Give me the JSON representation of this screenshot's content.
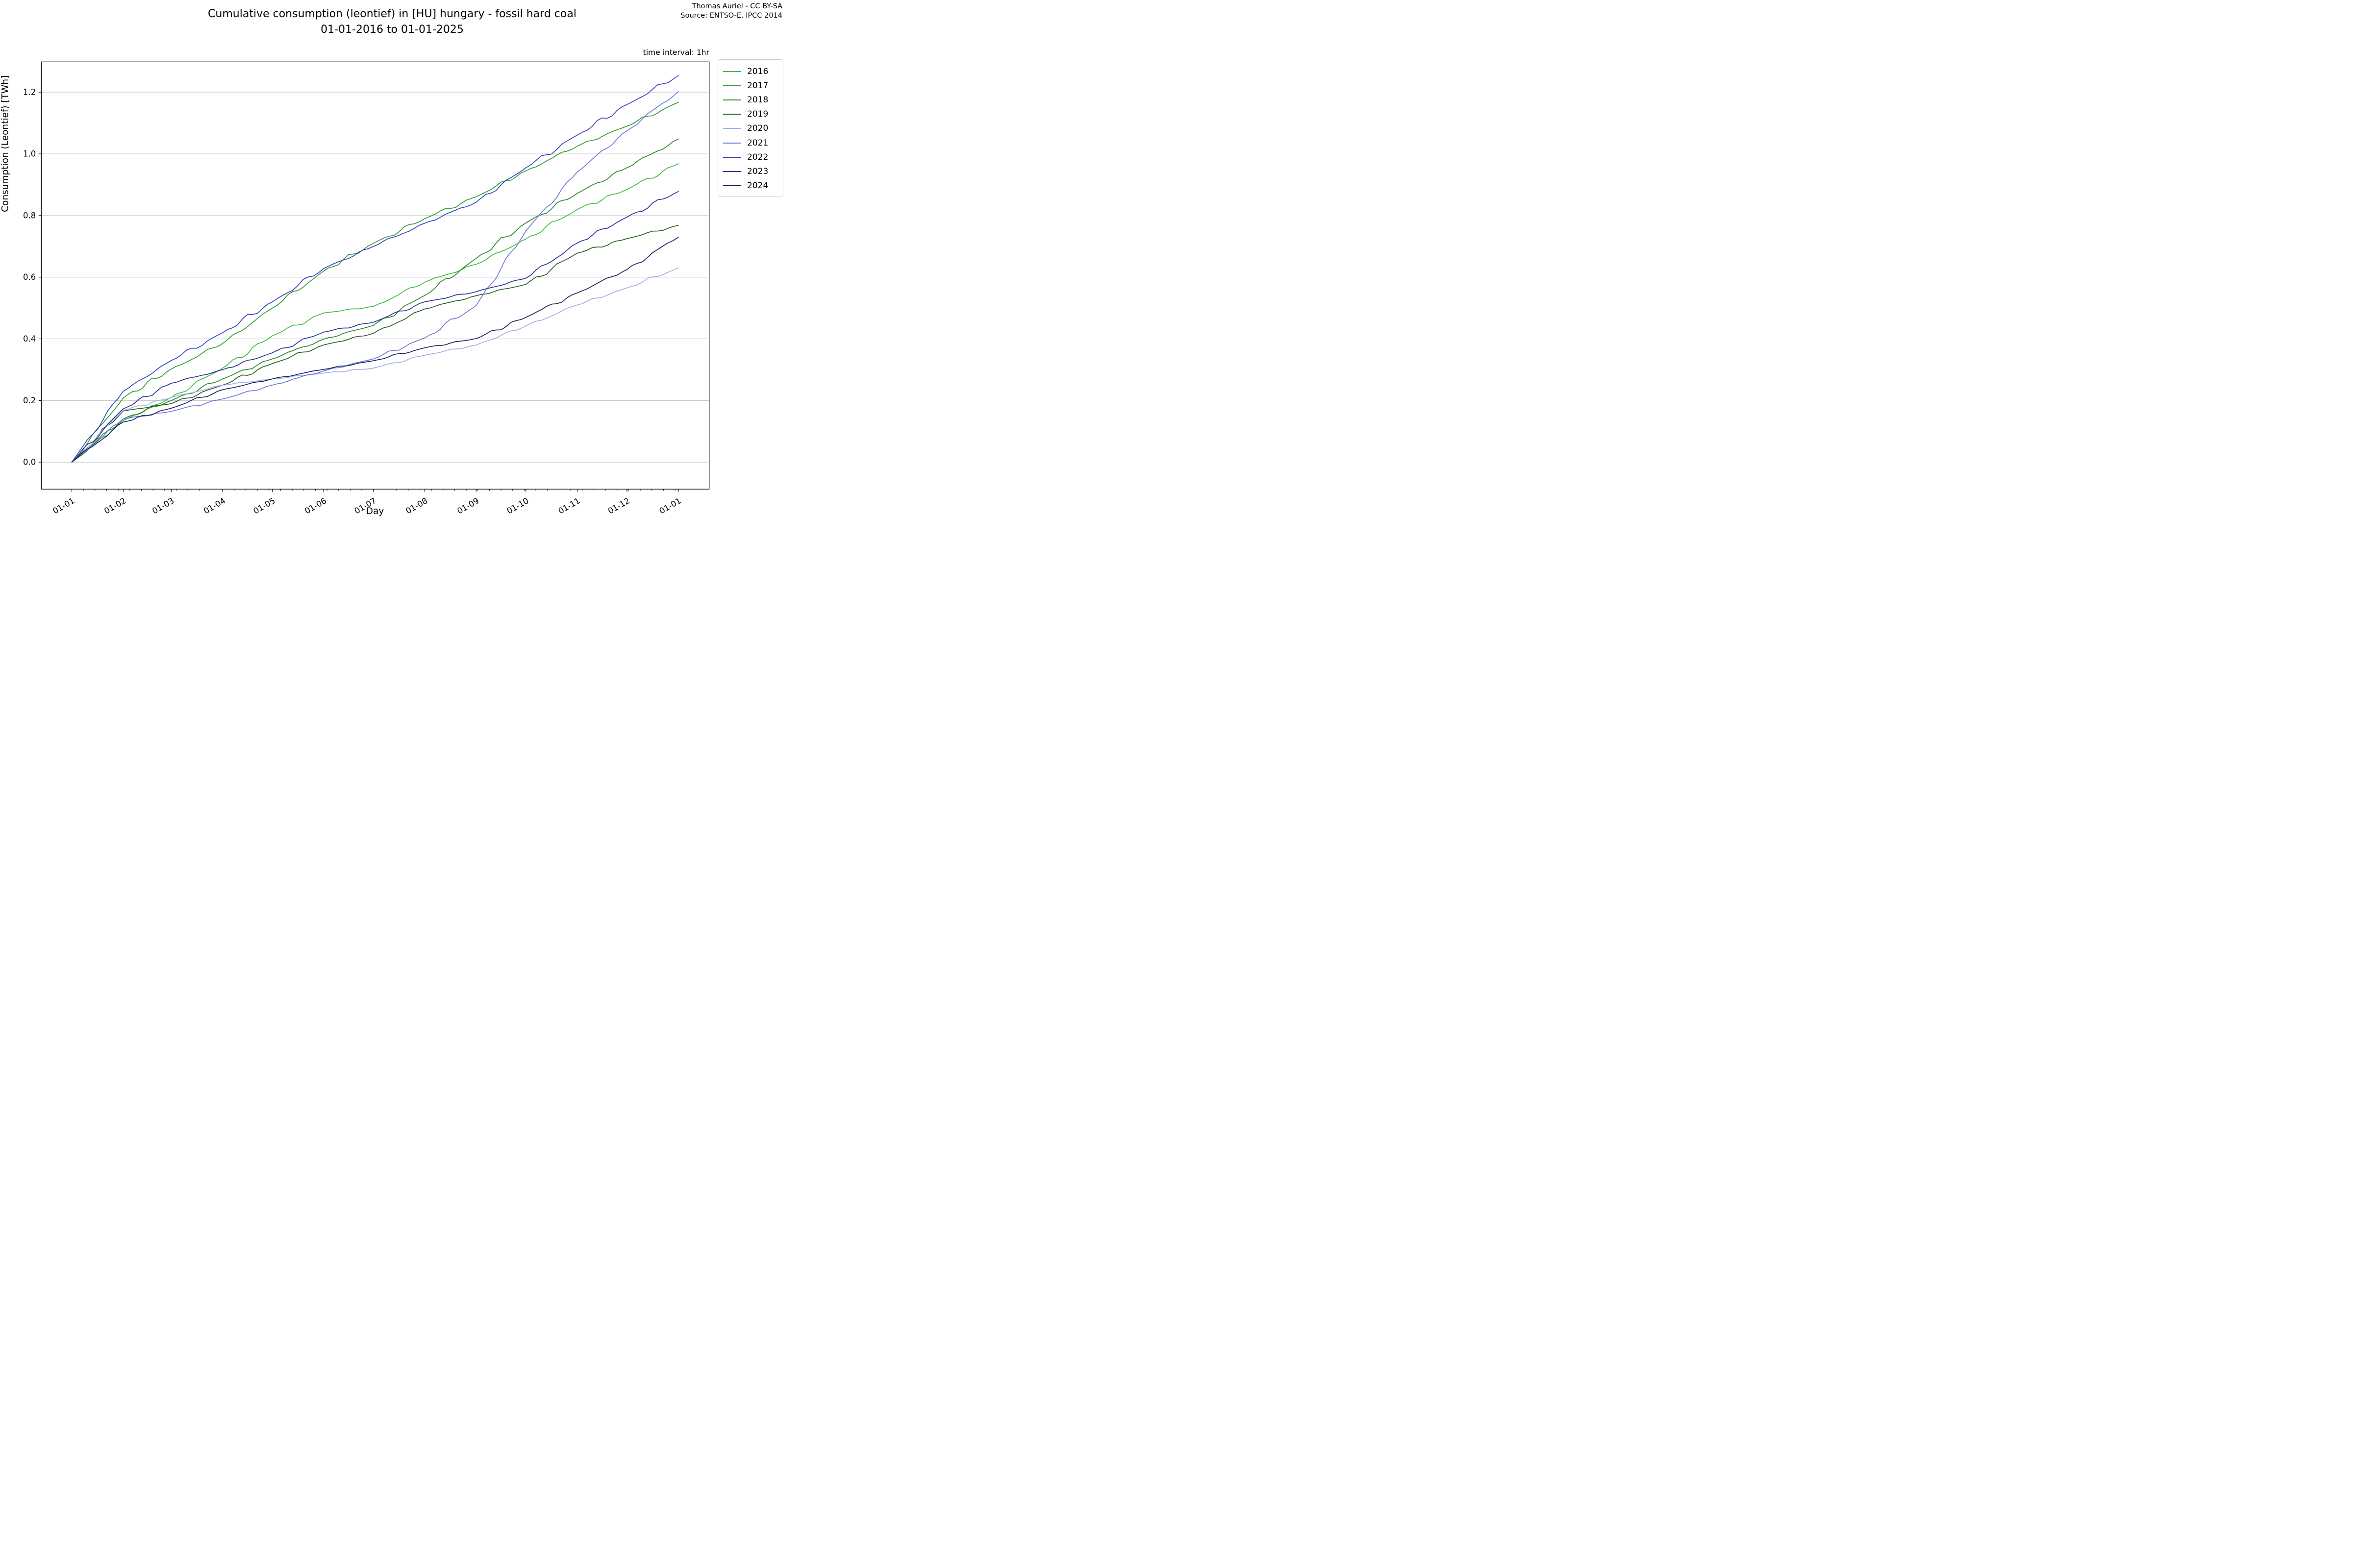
{
  "figure": {
    "title_line1": "Cumulative consumption (leontief) in [HU] hungary - fossil hard coal",
    "title_line2": "01-01-2016 to 01-01-2025",
    "credit_line1": "Thomas Auriel - CC BY-SA",
    "credit_line2": "Source: ENTSO-E, IPCC 2014",
    "time_interval_note": "time interval: 1hr"
  },
  "chart_data": {
    "type": "line",
    "title": "Cumulative consumption (leontief) in [HU] hungary - fossil hard coal 01-01-2016 to 01-01-2025",
    "xlabel": "Day",
    "ylabel": "Consumption (Leontief) [TWh]",
    "x_tick_labels": [
      "01-01",
      "01-02",
      "01-03",
      "01-04",
      "01-05",
      "01-06",
      "01-07",
      "01-08",
      "01-09",
      "01-10",
      "01-11",
      "01-12",
      "01-01"
    ],
    "x_tick_days": [
      0,
      31,
      60,
      91,
      121,
      152,
      182,
      213,
      244,
      274,
      305,
      335,
      366
    ],
    "x_minor_tick_interval_days": 7,
    "y_tick_labels": [
      "0.0",
      "0.2",
      "0.4",
      "0.6",
      "0.8",
      "1.0",
      "1.2"
    ],
    "y_ticks": [
      0.0,
      0.2,
      0.4,
      0.6,
      0.8,
      1.0,
      1.2
    ],
    "xlim_days": [
      -18.4,
      384.6
    ],
    "ylim": [
      -0.0875,
      1.2983
    ],
    "grid": "horizontal",
    "grid_color": "#c3c3c3",
    "legend_position": "outside upper right",
    "sample_note": "values read at month boundaries (cumulative TWh)",
    "series": [
      {
        "name": "2016",
        "color": "#3dbd3d",
        "monthly_values": [
          0,
          0.135,
          0.21,
          0.305,
          0.41,
          0.484,
          0.505,
          0.584,
          0.642,
          0.724,
          0.82,
          0.885,
          0.968
        ]
      },
      {
        "name": "2017",
        "color": "#2f9e2f",
        "monthly_values": [
          0,
          0.208,
          0.302,
          0.385,
          0.5,
          0.62,
          0.71,
          0.79,
          0.861,
          0.945,
          1.025,
          1.09,
          1.167
        ]
      },
      {
        "name": "2018",
        "color": "#2d862d",
        "monthly_values": [
          0,
          0.14,
          0.2,
          0.27,
          0.335,
          0.399,
          0.444,
          0.541,
          0.661,
          0.776,
          0.872,
          0.955,
          1.048
        ]
      },
      {
        "name": "2019",
        "color": "#295e22",
        "monthly_values": [
          0,
          0.166,
          0.19,
          0.25,
          0.32,
          0.38,
          0.418,
          0.497,
          0.54,
          0.577,
          0.678,
          0.725,
          0.768
        ]
      },
      {
        "name": "2020",
        "color": "#a6aeea",
        "monthly_values": [
          0,
          0.168,
          0.21,
          0.25,
          0.27,
          0.289,
          0.305,
          0.347,
          0.38,
          0.442,
          0.51,
          0.565,
          0.63
        ]
      },
      {
        "name": "2021",
        "color": "#6b77dc",
        "monthly_values": [
          0,
          0.14,
          0.165,
          0.205,
          0.25,
          0.296,
          0.335,
          0.403,
          0.508,
          0.75,
          0.941,
          1.075,
          1.202
        ]
      },
      {
        "name": "2022",
        "color": "#3841c2",
        "monthly_values": [
          0,
          0.23,
          0.33,
          0.42,
          0.52,
          0.628,
          0.7,
          0.775,
          0.843,
          0.955,
          1.061,
          1.16,
          1.254
        ]
      },
      {
        "name": "2023",
        "color": "#2b3197",
        "monthly_values": [
          0,
          0.173,
          0.256,
          0.3,
          0.355,
          0.422,
          0.454,
          0.52,
          0.553,
          0.597,
          0.711,
          0.795,
          0.878
        ]
      },
      {
        "name": "2024",
        "color": "#1b2161",
        "monthly_values": [
          0,
          0.13,
          0.175,
          0.235,
          0.27,
          0.301,
          0.329,
          0.371,
          0.401,
          0.47,
          0.549,
          0.625,
          0.73
        ]
      }
    ]
  }
}
